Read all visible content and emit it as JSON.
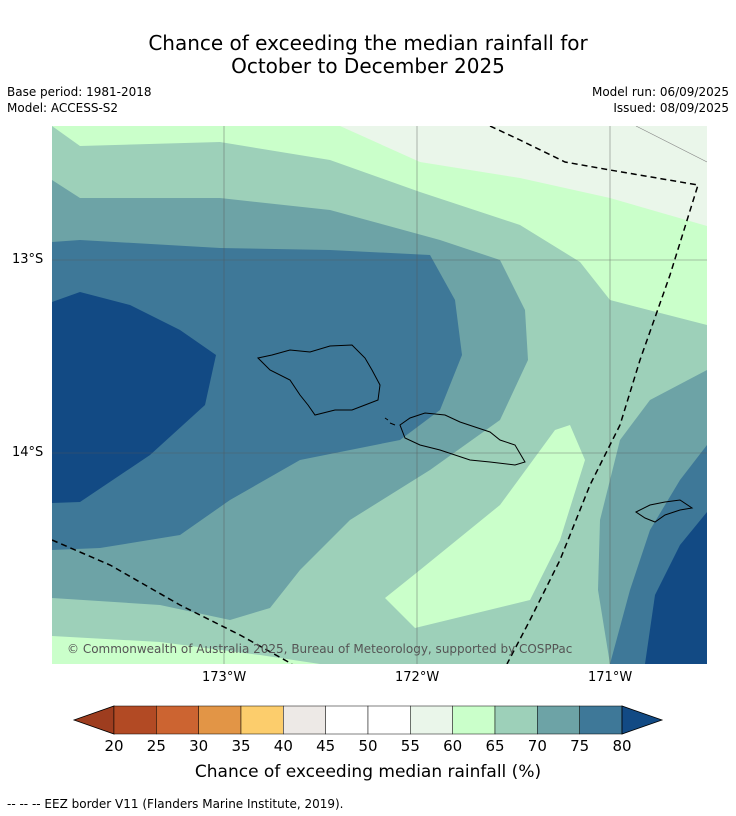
{
  "title_line1": "Chance of exceeding the median rainfall for",
  "title_line2": "October to December 2025",
  "base_period": "Base period: 1981-2018",
  "model": "Model: ACCESS-S2",
  "model_run": "Model run: 06/09/2025",
  "issued": "Issued: 08/09/2025",
  "copyright": "© Commonwealth of Australia 2025, Bureau of Meteorology, supported by COSPPac",
  "lat_ticks": [
    "13°S",
    "14°S"
  ],
  "lon_ticks": [
    "173°W",
    "172°W",
    "171°W"
  ],
  "colorbar": {
    "title": "Chance of exceeding median rainfall (%)",
    "labels": [
      "20",
      "25",
      "30",
      "35",
      "40",
      "45",
      "50",
      "55",
      "60",
      "65",
      "70",
      "75",
      "80"
    ],
    "colors": [
      "#b24a24",
      "#cc6431",
      "#e29546",
      "#fccd6c",
      "#ede9e6",
      "#ffffff",
      "#ffffff",
      "#eaf6ea",
      "#caffca",
      "#9dd0b9",
      "#6da3a6",
      "#3e7898"
    ],
    "low_color": "#9e3d1f",
    "high_color": "#124a84"
  },
  "footer": "-- -- -- EEZ border V11 (Flanders Marine Institute, 2019)."
}
